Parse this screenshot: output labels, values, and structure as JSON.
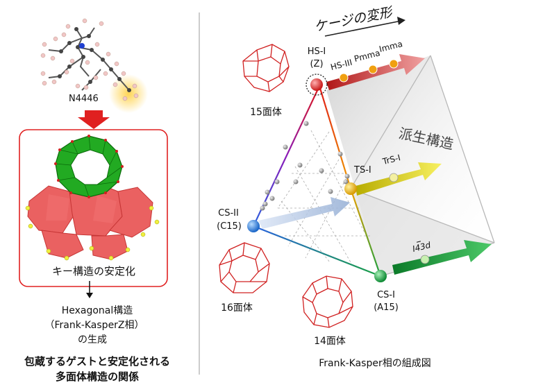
{
  "left": {
    "molecule_label": "N4446",
    "box_caption": "キー構造の安定化",
    "result_lines": [
      "Hexagonal構造",
      "（Frank-KasperZ相）",
      "の生成"
    ],
    "bottom_caption_lines": [
      "包蔵するゲストと安定化される",
      "多面体構造の関係"
    ]
  },
  "right": {
    "title": "ケージの変形",
    "derived_label": "派生構造",
    "bottom_caption": "Frank-Kasper相の組成図",
    "polyhedra": {
      "p15": "15面体",
      "p16": "16面体",
      "p14": "14面体"
    },
    "vertices": {
      "hs1": {
        "name": "HS-I",
        "sub": "(Z)",
        "color": "#e02020"
      },
      "cs2": {
        "name": "CS-II",
        "sub": "(C15)",
        "color": "#2f7fe0"
      },
      "ts1": {
        "name": "TS-I",
        "color": "#e0b000"
      },
      "cs1": {
        "name": "CS-I",
        "sub": "(A15)",
        "color": "#16a040"
      }
    },
    "arrow_labels": {
      "hs3": "HS-III",
      "pmma": "Pmma",
      "imma": "Imma",
      "trs1": "TrS-I",
      "i43d": "I43d"
    }
  }
}
